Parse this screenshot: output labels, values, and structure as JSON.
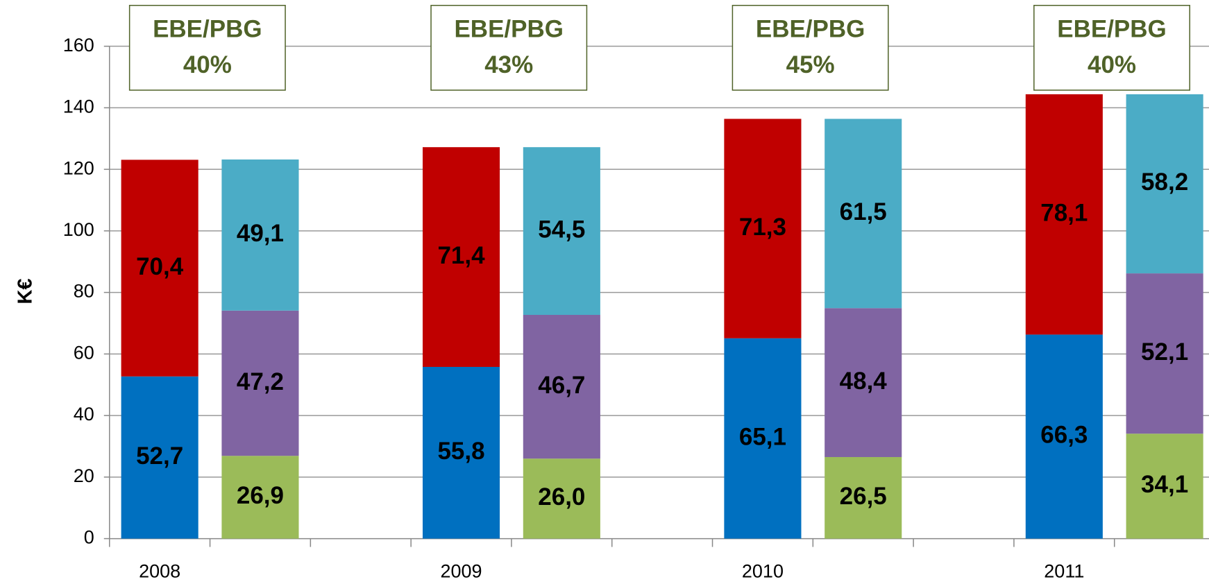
{
  "chart_data": {
    "type": "stacked-bar",
    "y_label": "K€",
    "categories": [
      "2008",
      "2009",
      "2010",
      "2011"
    ],
    "ylim": [
      0,
      160
    ],
    "yticks": [
      0,
      20,
      40,
      60,
      80,
      100,
      120,
      140,
      160
    ],
    "grid": true,
    "series": [
      {
        "stack": 0,
        "color": "#0070c0",
        "values": [
          52.7,
          55.8,
          65.1,
          66.3
        ],
        "value_labels": [
          "52,7",
          "55,8",
          "65,1",
          "66,3"
        ]
      },
      {
        "stack": 0,
        "color": "#c00000",
        "values": [
          70.4,
          71.4,
          71.3,
          78.1
        ],
        "value_labels": [
          "70,4",
          "71,4",
          "71,3",
          "78,1"
        ]
      },
      {
        "stack": 1,
        "color": "#9bbb59",
        "values": [
          26.9,
          26.0,
          26.5,
          34.1
        ],
        "value_labels": [
          "26,9",
          "26,0",
          "26,5",
          "34,1"
        ]
      },
      {
        "stack": 1,
        "color": "#8064a2",
        "values": [
          47.2,
          46.7,
          48.4,
          52.1
        ],
        "value_labels": [
          "47,2",
          "46,7",
          "48,4",
          "52,1"
        ]
      },
      {
        "stack": 1,
        "color": "#4bacc6",
        "values": [
          49.1,
          54.5,
          61.5,
          58.2
        ],
        "value_labels": [
          "49,1",
          "54,5",
          "61,5",
          "58,2"
        ]
      }
    ],
    "annotations": [
      {
        "title": "EBE/PBG",
        "value": 40,
        "label": "40%"
      },
      {
        "title": "EBE/PBG",
        "value": 43,
        "label": "43%"
      },
      {
        "title": "EBE/PBG",
        "value": 45,
        "label": "45%"
      },
      {
        "title": "EBE/PBG",
        "value": 40,
        "label": "40%"
      }
    ]
  }
}
